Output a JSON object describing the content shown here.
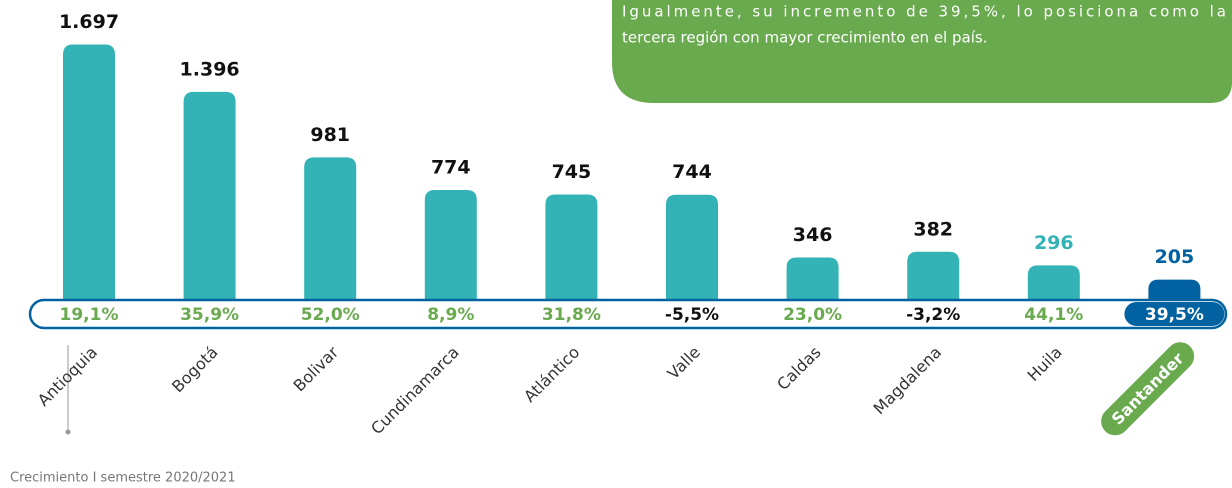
{
  "chart_data": {
    "type": "bar",
    "categories": [
      "Antioquia",
      "Bogotá",
      "Bolivar",
      "Cundinamarca",
      "Atlántico",
      "Valle",
      "Caldas",
      "Magdalena",
      "Huila",
      "Santander"
    ],
    "values": [
      1697,
      1396,
      981,
      774,
      745,
      744,
      346,
      382,
      296,
      205
    ],
    "value_labels": [
      "1.697",
      "1.396",
      "981",
      "774",
      "745",
      "744",
      "346",
      "382",
      "296",
      "205"
    ],
    "colors": [
      "#33b3b5",
      "#33b3b5",
      "#33b3b5",
      "#33b3b5",
      "#33b3b5",
      "#33b3b5",
      "#33b3b5",
      "#33b3b5",
      "#33b3b5",
      "#0062a0"
    ],
    "label_colors": [
      "#111111",
      "#111111",
      "#111111",
      "#111111",
      "#111111",
      "#111111",
      "#111111",
      "#111111",
      "#33b3b5",
      "#0062a0"
    ],
    "growth": {
      "values": [
        19.1,
        35.9,
        52.0,
        8.9,
        31.8,
        -5.5,
        23.0,
        -3.2,
        44.1,
        39.5
      ],
      "value_labels": [
        "19,1%",
        "35,9%",
        "52,0%",
        "8,9%",
        "31,8%",
        "-5,5%",
        "23,0%",
        "-3,2%",
        "44,1%",
        "39,5%"
      ]
    },
    "ylim": [
      0,
      1700
    ],
    "annotation_lines": [
      "Igualmente, su incremento de 39,5%, lo posiciona como la",
      "tercera región con mayor crecimiento en el país."
    ],
    "footnote": "Crecimiento I semestre 2020/2021"
  }
}
